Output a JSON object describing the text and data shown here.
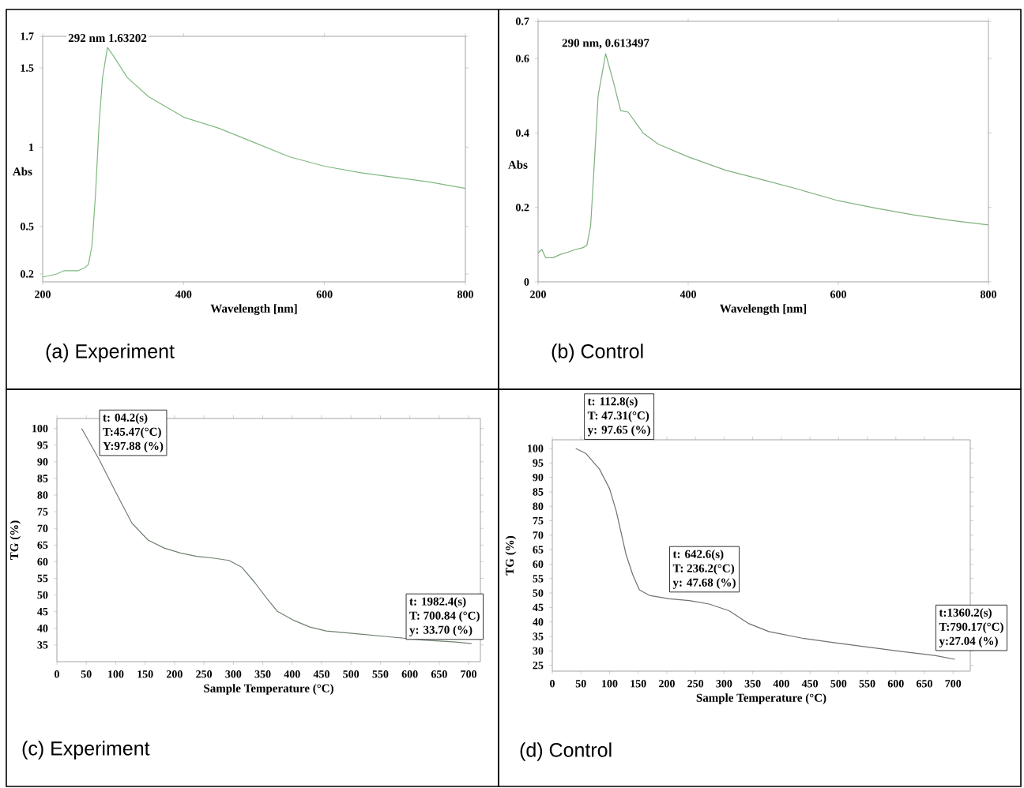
{
  "chart_data": [
    {
      "type": "line",
      "title": "(a) Experiment",
      "xlabel": "Wavelength [nm]",
      "ylabel": "Abs",
      "xlim": [
        200,
        800
      ],
      "ylim": [
        0.15,
        1.7
      ],
      "xticks": [
        200,
        400,
        600,
        800
      ],
      "yticks": [
        0.2,
        0.5,
        1,
        1.5,
        1.7
      ],
      "x": [
        200,
        220,
        230,
        240,
        250,
        260,
        265,
        270,
        275,
        280,
        285,
        292,
        300,
        320,
        350,
        400,
        450,
        500,
        550,
        600,
        650,
        700,
        750,
        800
      ],
      "series": [
        {
          "color": "#7fb97f",
          "values": [
            0.18,
            0.2,
            0.22,
            0.22,
            0.22,
            0.24,
            0.26,
            0.38,
            0.7,
            1.14,
            1.44,
            1.63,
            1.58,
            1.44,
            1.32,
            1.19,
            1.12,
            1.03,
            0.94,
            0.88,
            0.84,
            0.81,
            0.78,
            0.74
          ]
        }
      ],
      "annotations": [
        {
          "text": "292 nm 1.63202",
          "x": 292,
          "y": 1.63202
        }
      ]
    },
    {
      "type": "line",
      "title": "(b) Control",
      "xlabel": "Wavelength [nm]",
      "ylabel": "Abs",
      "xlim": [
        200,
        800
      ],
      "ylim": [
        0,
        0.7
      ],
      "xticks": [
        200,
        400,
        600,
        800
      ],
      "yticks": [
        0,
        0.2,
        0.4,
        0.6,
        0.7
      ],
      "x": [
        200,
        205,
        210,
        220,
        230,
        240,
        250,
        260,
        265,
        270,
        275,
        280,
        290,
        300,
        310,
        320,
        340,
        360,
        400,
        450,
        500,
        550,
        600,
        650,
        700,
        750,
        800
      ],
      "series": [
        {
          "color": "#7fb07f",
          "values": [
            0.078,
            0.087,
            0.065,
            0.065,
            0.074,
            0.08,
            0.087,
            0.092,
            0.098,
            0.15,
            0.32,
            0.5,
            0.613,
            0.54,
            0.46,
            0.456,
            0.4,
            0.37,
            0.336,
            0.3,
            0.274,
            0.247,
            0.218,
            0.198,
            0.18,
            0.165,
            0.153
          ]
        }
      ],
      "annotations": [
        {
          "text": "290 nm, 0.613497",
          "x": 290,
          "y": 0.613
        }
      ]
    },
    {
      "type": "line",
      "title": "(c) Experiment",
      "xlabel": "Sample Temperature (°C)",
      "ylabel": "TG (%)",
      "xlim": [
        0,
        720
      ],
      "ylim": [
        30,
        103
      ],
      "xticks": [
        0,
        50,
        100,
        150,
        200,
        250,
        300,
        350,
        400,
        450,
        500,
        550,
        600,
        650,
        700
      ],
      "yticks": [
        35,
        40,
        45,
        50,
        55,
        60,
        65,
        70,
        75,
        80,
        85,
        90,
        95,
        100
      ],
      "x": [
        42,
        53,
        72,
        100,
        127.5,
        155,
        182.5,
        210,
        237.6,
        265,
        292.6,
        314.6,
        336.7,
        358.7,
        375,
        402.7,
        430,
        457.7,
        512.8,
        567.8,
        622.8,
        677.9,
        705
      ],
      "series": [
        {
          "color": "#6f8070",
          "values": [
            100,
            96.6,
            90.6,
            80.9,
            71.6,
            66.5,
            64.1,
            62.6,
            61.6,
            61.1,
            60.4,
            58.3,
            53.7,
            48.6,
            45.1,
            42.4,
            40.4,
            39.2,
            38.3,
            37.4,
            36.5,
            35.9,
            35.4
          ]
        }
      ],
      "annotations": [
        "t: 04.2(s)",
        "T:45.47(°C)",
        "Y:97.88 (%)",
        "t: 1982.4(s)",
        "T: 700.84 (°C)",
        "y: 33.70 (%)"
      ]
    },
    {
      "type": "line",
      "title": "(d) Control",
      "xlabel": "Sample Temperature (°C)",
      "ylabel": "TG (%)",
      "xlim": [
        0,
        730
      ],
      "ylim": [
        23,
        103
      ],
      "xticks": [
        0,
        50,
        100,
        150,
        200,
        250,
        300,
        350,
        400,
        450,
        500,
        550,
        600,
        650,
        700
      ],
      "yticks": [
        25,
        30,
        35,
        40,
        45,
        50,
        55,
        60,
        65,
        70,
        75,
        80,
        85,
        90,
        95,
        100
      ],
      "x": [
        41,
        59,
        82.6,
        100,
        111.6,
        120.3,
        129,
        140.6,
        152,
        169.6,
        204.3,
        239.1,
        274,
        308.7,
        343.5,
        378.3,
        436.2,
        494.2,
        552,
        610,
        668,
        703
      ],
      "series": [
        {
          "color": "#707070",
          "values": [
            100,
            98.2,
            92.8,
            86.1,
            78.4,
            70.8,
            63.2,
            56.3,
            51.1,
            49.2,
            48.0,
            47.4,
            46.2,
            43.9,
            39.4,
            36.7,
            34.4,
            32.8,
            31.3,
            29.8,
            28.4,
            27.1
          ]
        }
      ],
      "annotations": [
        "t: 112.8(s)",
        "T: 47.31(°C)",
        "y: 97.65 (%)",
        "t: 642.6(s)",
        "T: 236.2(°C)",
        "y: 47.68 (%)",
        "t:1360.2(s)",
        "T:790.17(°C)",
        "y:27.04 (%)"
      ]
    }
  ]
}
